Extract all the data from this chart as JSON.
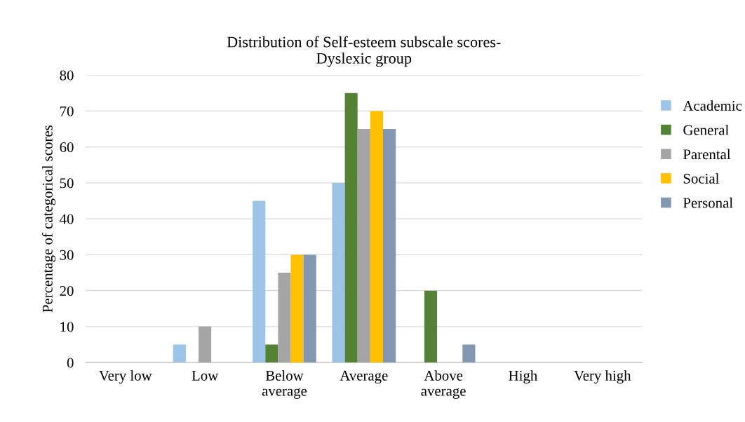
{
  "chart_data": {
    "type": "bar",
    "title": "Distribution of Self-esteem subscale scores-\nDyslexic group",
    "ylabel": "Percentage of categorical scores",
    "categories": [
      "Very low",
      "Low",
      "Below\naverage",
      "Average",
      "Above\naverage",
      "High",
      "Very high"
    ],
    "series": [
      {
        "name": "Academic",
        "color": "#9dc3e6",
        "values": [
          0,
          5,
          45,
          50,
          0,
          0,
          0
        ]
      },
      {
        "name": "General",
        "color": "#548235",
        "values": [
          0,
          0,
          5,
          75,
          20,
          0,
          0
        ]
      },
      {
        "name": "Parental",
        "color": "#a5a5a5",
        "values": [
          0,
          10,
          25,
          65,
          0,
          0,
          0
        ]
      },
      {
        "name": "Social",
        "color": "#ffc000",
        "values": [
          0,
          0,
          30,
          70,
          0,
          0,
          0
        ]
      },
      {
        "name": "Personal",
        "color": "#8497b0",
        "values": [
          0,
          0,
          30,
          65,
          5,
          0,
          0
        ]
      }
    ],
    "ylim": [
      0,
      80
    ],
    "yticks": [
      0,
      10,
      20,
      30,
      40,
      50,
      60,
      70,
      80
    ],
    "grid": "y",
    "legend": "right"
  }
}
